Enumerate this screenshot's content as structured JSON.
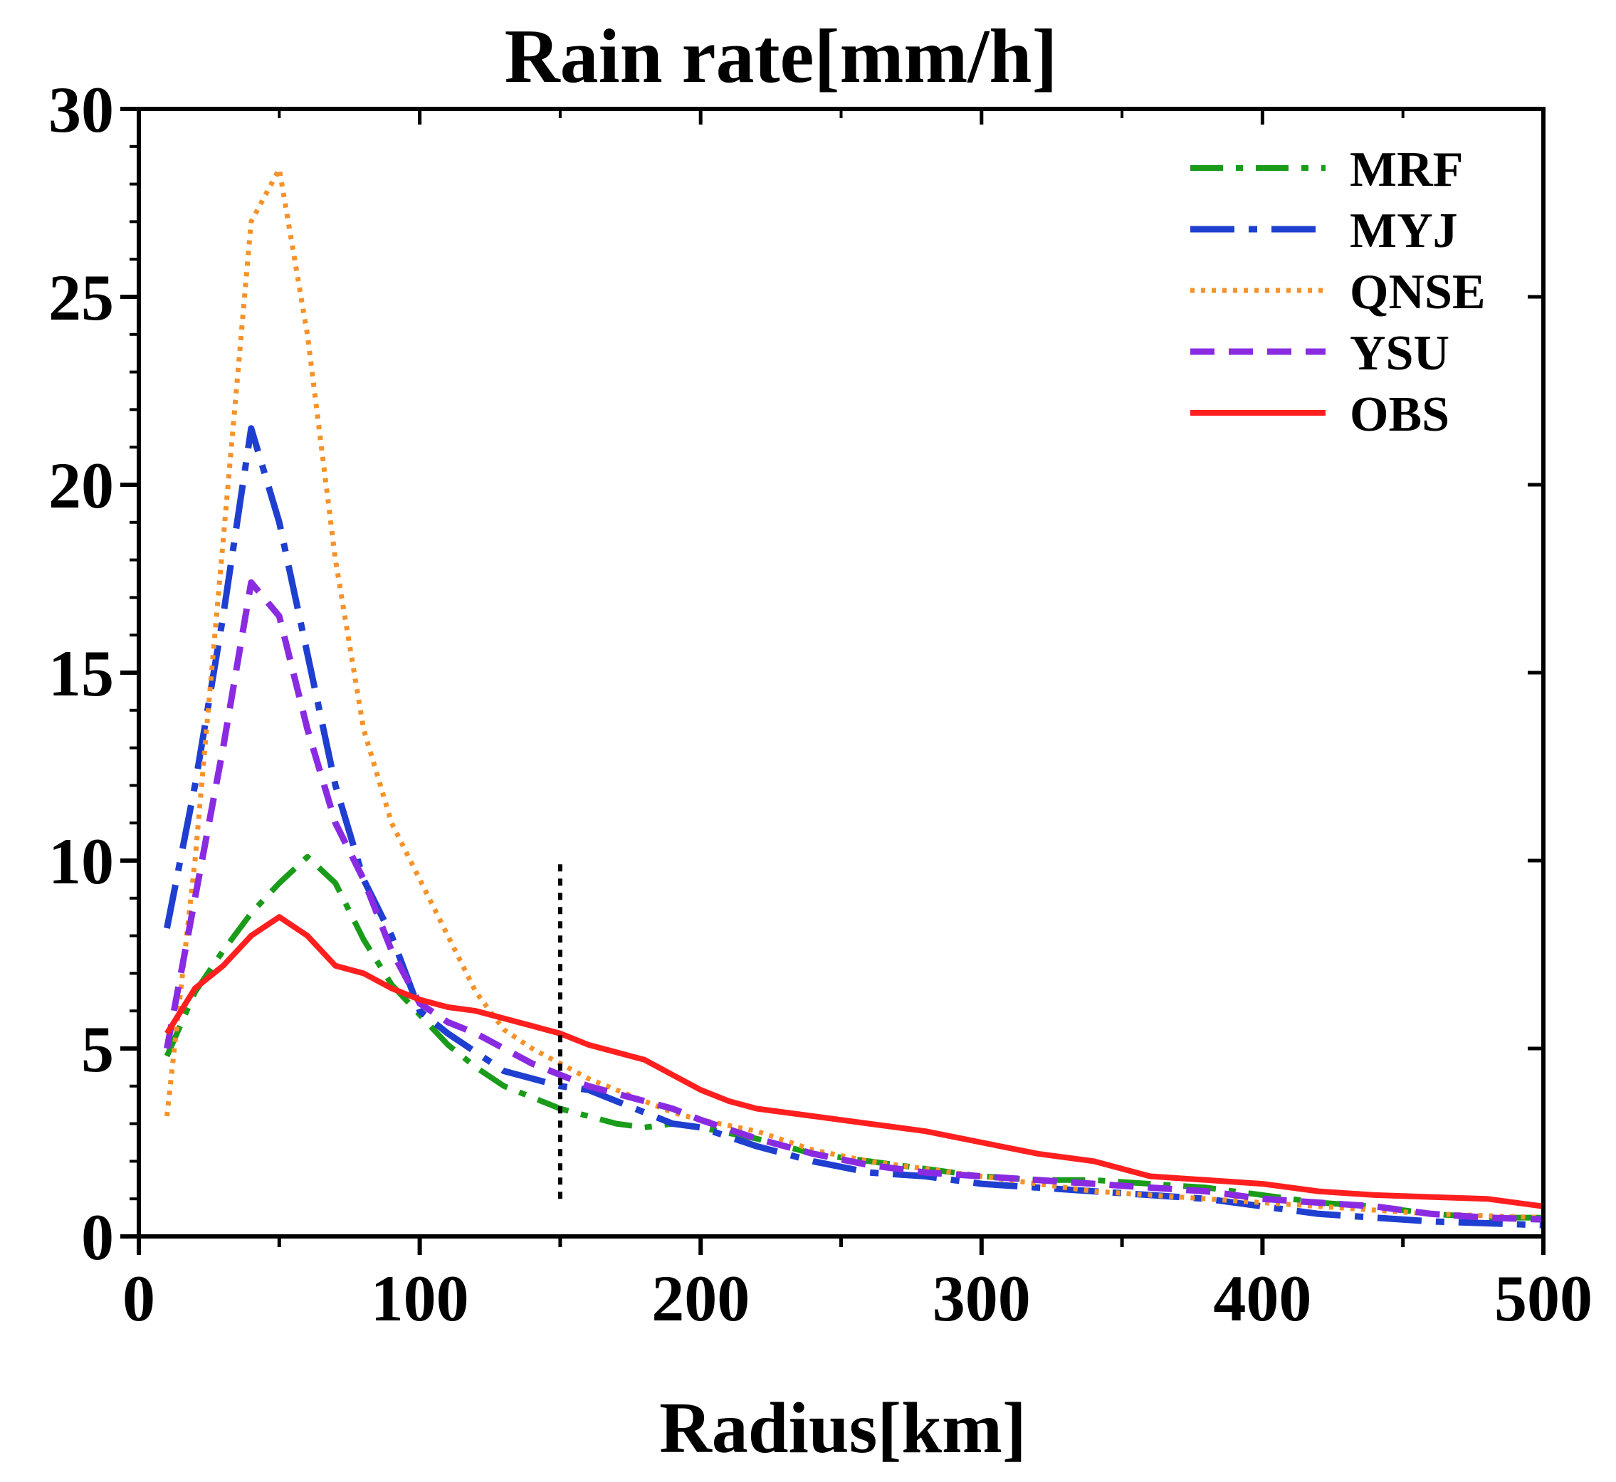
{
  "chart_data": {
    "type": "line",
    "title": "Rain rate[mm/h]",
    "xlabel": "Radius[km]",
    "ylabel": "",
    "xlim": [
      0,
      500
    ],
    "ylim": [
      0,
      30
    ],
    "xticks": [
      0,
      100,
      200,
      300,
      400,
      500
    ],
    "yticks": [
      0,
      5,
      10,
      15,
      20,
      25,
      30
    ],
    "grid": false,
    "legend": "top-right",
    "reference_line": {
      "x": 150,
      "y_from": 1,
      "y_to": 10,
      "color": "#000000",
      "style": "dotted"
    },
    "series": [
      {
        "name": "MRF",
        "color": "#1a9c1a",
        "style": "dashdot",
        "x": [
          10,
          20,
          30,
          40,
          50,
          60,
          70,
          80,
          90,
          100,
          110,
          120,
          130,
          140,
          150,
          160,
          170,
          180,
          190,
          200,
          220,
          240,
          260,
          280,
          300,
          320,
          340,
          360,
          380,
          400,
          420,
          440,
          460,
          480,
          500
        ],
        "y": [
          4.8,
          6.5,
          7.6,
          8.6,
          9.4,
          10.1,
          9.4,
          7.9,
          6.7,
          5.9,
          5.1,
          4.5,
          4.0,
          3.7,
          3.4,
          3.2,
          3.0,
          2.9,
          3.0,
          2.9,
          2.6,
          2.2,
          2.0,
          1.8,
          1.6,
          1.5,
          1.5,
          1.4,
          1.3,
          1.1,
          0.9,
          0.8,
          0.6,
          0.5,
          0.5
        ]
      },
      {
        "name": "MYJ",
        "color": "#1f3fd0",
        "style": "dashdotlong",
        "x": [
          10,
          20,
          30,
          40,
          50,
          60,
          70,
          80,
          90,
          100,
          110,
          120,
          130,
          140,
          150,
          160,
          170,
          180,
          190,
          200,
          220,
          240,
          260,
          280,
          300,
          320,
          340,
          360,
          380,
          400,
          420,
          440,
          460,
          480,
          500
        ],
        "y": [
          8.2,
          12.0,
          16.5,
          21.5,
          19.0,
          15.5,
          12.0,
          9.5,
          8.0,
          6.0,
          5.4,
          4.9,
          4.4,
          4.2,
          4.0,
          3.9,
          3.6,
          3.3,
          3.0,
          2.9,
          2.4,
          2.0,
          1.7,
          1.6,
          1.4,
          1.3,
          1.2,
          1.1,
          1.0,
          0.8,
          0.6,
          0.5,
          0.4,
          0.35,
          0.3
        ]
      },
      {
        "name": "QNSE",
        "color": "#f5922a",
        "style": "dotted",
        "x": [
          10,
          20,
          30,
          40,
          50,
          60,
          70,
          80,
          90,
          100,
          110,
          120,
          130,
          140,
          150,
          160,
          170,
          180,
          190,
          200,
          220,
          240,
          260,
          280,
          300,
          320,
          340,
          360,
          380,
          400,
          420,
          440,
          460,
          480,
          500
        ],
        "y": [
          3.2,
          10.0,
          18.5,
          27.0,
          28.4,
          24.0,
          18.0,
          13.5,
          11.0,
          9.5,
          8.0,
          6.5,
          5.5,
          5.0,
          4.6,
          4.2,
          3.9,
          3.6,
          3.3,
          3.1,
          2.8,
          2.3,
          2.0,
          1.8,
          1.6,
          1.4,
          1.2,
          1.1,
          1.0,
          0.9,
          0.8,
          0.7,
          0.6,
          0.55,
          0.5
        ]
      },
      {
        "name": "YSU",
        "color": "#8a2be2",
        "style": "dashed",
        "x": [
          10,
          20,
          30,
          40,
          50,
          60,
          70,
          80,
          90,
          100,
          110,
          120,
          130,
          140,
          150,
          160,
          170,
          180,
          190,
          200,
          220,
          240,
          260,
          280,
          300,
          320,
          340,
          360,
          380,
          400,
          420,
          440,
          460,
          480,
          500
        ],
        "y": [
          5.0,
          9.0,
          13.0,
          17.4,
          16.5,
          13.5,
          11.0,
          9.5,
          7.6,
          6.2,
          5.7,
          5.4,
          5.0,
          4.6,
          4.3,
          4.0,
          3.8,
          3.6,
          3.4,
          3.1,
          2.6,
          2.2,
          1.9,
          1.7,
          1.6,
          1.5,
          1.4,
          1.3,
          1.2,
          1.0,
          0.9,
          0.8,
          0.6,
          0.5,
          0.45
        ]
      },
      {
        "name": "OBS",
        "color": "#ff1f1f",
        "style": "solid",
        "x": [
          10,
          20,
          30,
          40,
          50,
          60,
          70,
          80,
          90,
          100,
          110,
          120,
          130,
          140,
          150,
          160,
          170,
          180,
          190,
          200,
          210,
          220,
          240,
          260,
          280,
          300,
          320,
          340,
          360,
          380,
          400,
          420,
          440,
          460,
          480,
          500
        ],
        "y": [
          5.4,
          6.6,
          7.2,
          8.0,
          8.5,
          8.0,
          7.2,
          7.0,
          6.6,
          6.3,
          6.1,
          6.0,
          5.8,
          5.6,
          5.4,
          5.1,
          4.9,
          4.7,
          4.3,
          3.9,
          3.6,
          3.4,
          3.2,
          3.0,
          2.8,
          2.5,
          2.2,
          2.0,
          1.6,
          1.5,
          1.4,
          1.2,
          1.1,
          1.05,
          1.0,
          0.8
        ]
      }
    ]
  }
}
